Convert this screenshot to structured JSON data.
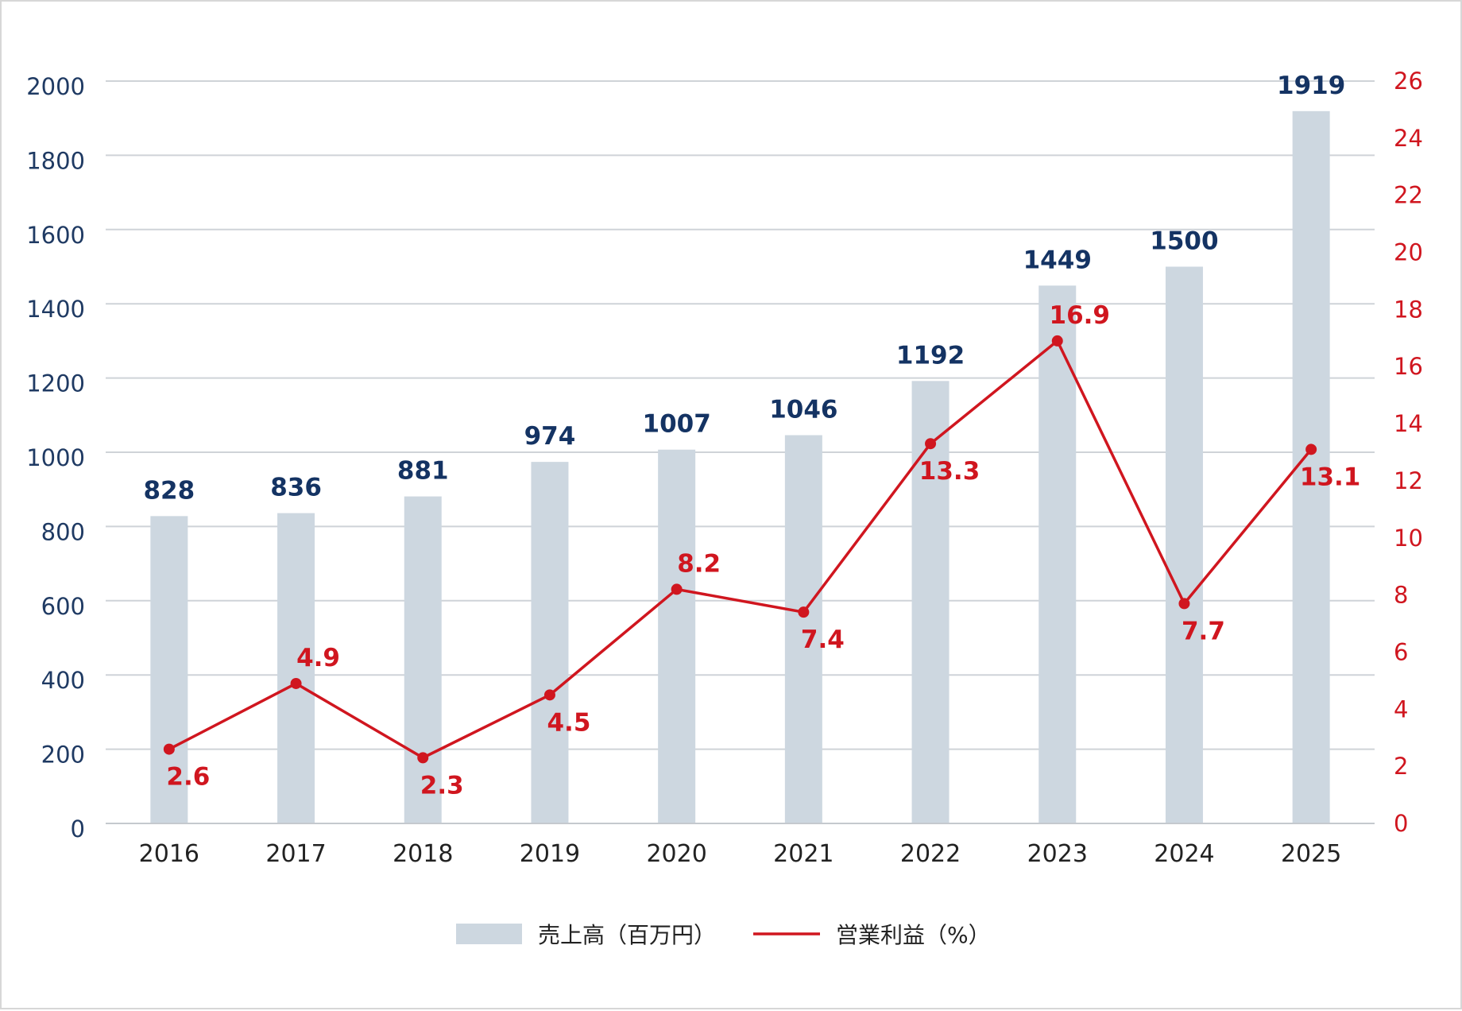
{
  "chart_data": {
    "type": "bar+line",
    "categories": [
      "2016",
      "2017",
      "2018",
      "2019",
      "2020",
      "2021",
      "2022",
      "2023",
      "2024",
      "2025"
    ],
    "series": [
      {
        "name": "売上高（百万円）",
        "type": "bar",
        "axis": "left",
        "values": [
          828,
          836,
          881,
          974,
          1007,
          1046,
          1192,
          1449,
          1500,
          1919
        ],
        "color": "#cdd7e0",
        "label_color": "#143363"
      },
      {
        "name": "営業利益（%）",
        "type": "line",
        "axis": "right",
        "values": [
          2.6,
          4.9,
          2.3,
          4.5,
          8.2,
          7.4,
          13.3,
          16.9,
          7.7,
          13.1
        ],
        "color": "#d0161f"
      }
    ],
    "y_left": {
      "range": [
        0,
        2000
      ],
      "ticks": [
        "0",
        "200",
        "400",
        "600",
        "800",
        "1000",
        "1200",
        "1400",
        "1600",
        "1800",
        "2000"
      ],
      "color": "#1f3a63"
    },
    "y_right": {
      "range": [
        0,
        26
      ],
      "ticks": [
        "0",
        "2",
        "4",
        "6",
        "8",
        "10",
        "12",
        "14",
        "16",
        "18",
        "20",
        "22",
        "24",
        "26"
      ],
      "color": "#d0161f"
    },
    "grid": true,
    "legend_position": "bottom-center"
  }
}
